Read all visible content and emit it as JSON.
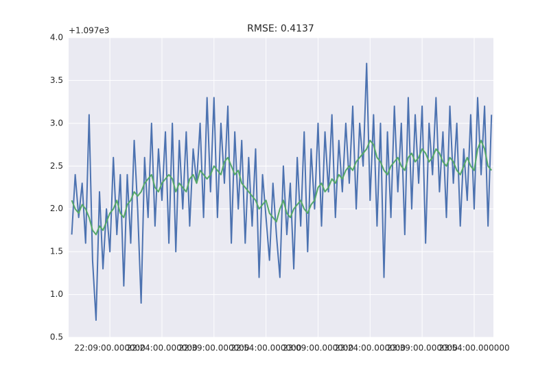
{
  "chart_data": {
    "type": "line",
    "title": "RMSE: 0.4137",
    "offset_label": "+1.097e3",
    "x": [
      "21:58:00",
      "21:59:00",
      "22:00:00",
      "22:01:00",
      "22:02:00",
      "22:03:00",
      "22:04:00",
      "22:05:00",
      "22:06:00",
      "22:07:00",
      "22:08:00",
      "22:09:00",
      "22:10:00",
      "22:11:00",
      "22:12:00",
      "22:13:00",
      "22:14:00",
      "22:15:00",
      "22:16:00",
      "22:17:00",
      "22:18:00",
      "22:19:00",
      "22:20:00",
      "22:21:00",
      "22:22:00",
      "22:23:00",
      "22:24:00",
      "22:25:00",
      "22:26:00",
      "22:27:00",
      "22:28:00",
      "22:29:00",
      "22:30:00",
      "22:31:00",
      "22:32:00",
      "22:33:00",
      "22:34:00",
      "22:35:00",
      "22:36:00",
      "22:37:00",
      "22:38:00",
      "22:39:00",
      "22:40:00",
      "22:41:00",
      "22:42:00",
      "22:43:00",
      "22:44:00",
      "22:45:00",
      "22:46:00",
      "22:47:00",
      "22:48:00",
      "22:49:00",
      "22:50:00",
      "22:51:00",
      "22:52:00",
      "22:53:00",
      "22:54:00",
      "22:55:00",
      "22:56:00",
      "22:57:00",
      "22:58:00",
      "22:59:00",
      "23:00:00",
      "23:01:00",
      "23:02:00",
      "23:03:00",
      "23:04:00",
      "23:05:00",
      "23:06:00",
      "23:07:00",
      "23:08:00",
      "23:09:00",
      "23:10:00",
      "23:11:00",
      "23:12:00",
      "23:13:00",
      "23:14:00",
      "23:15:00",
      "23:16:00",
      "23:17:00",
      "23:18:00",
      "23:19:00",
      "23:20:00",
      "23:21:00",
      "23:22:00",
      "23:23:00",
      "23:24:00",
      "23:25:00",
      "23:26:00",
      "23:27:00",
      "23:28:00",
      "23:29:00",
      "23:30:00",
      "23:31:00",
      "23:32:00",
      "23:33:00",
      "23:34:00",
      "23:35:00",
      "23:36:00",
      "23:37:00",
      "23:38:00",
      "23:39:00",
      "23:40:00",
      "23:41:00",
      "23:42:00",
      "23:43:00",
      "23:44:00",
      "23:45:00",
      "23:46:00",
      "23:47:00",
      "23:48:00",
      "23:49:00",
      "23:50:00",
      "23:51:00",
      "23:52:00",
      "23:53:00",
      "23:54:00",
      "23:55:00",
      "23:56:00",
      "23:57:00",
      "23:58:00",
      "23:59:00"
    ],
    "series": [
      {
        "color": "#4c72b0",
        "values": [
          1.7,
          2.4,
          1.9,
          2.3,
          1.6,
          3.1,
          1.4,
          0.7,
          2.2,
          1.3,
          2.0,
          1.5,
          2.6,
          1.7,
          2.4,
          1.1,
          2.4,
          1.6,
          2.8,
          2.0,
          0.9,
          2.6,
          1.9,
          3.0,
          1.8,
          2.7,
          2.1,
          2.9,
          1.6,
          3.0,
          1.5,
          2.8,
          2.0,
          2.9,
          1.8,
          2.7,
          2.3,
          3.0,
          1.9,
          3.3,
          2.2,
          3.3,
          1.9,
          3.0,
          2.3,
          3.2,
          1.6,
          2.9,
          2.0,
          2.8,
          1.6,
          2.6,
          1.8,
          2.7,
          1.2,
          2.4,
          1.9,
          1.4,
          2.3,
          1.7,
          1.2,
          2.5,
          1.7,
          2.3,
          1.3,
          2.6,
          1.8,
          2.9,
          1.5,
          2.7,
          2.0,
          3.0,
          1.8,
          2.9,
          2.2,
          3.1,
          1.9,
          2.8,
          2.2,
          3.0,
          2.3,
          3.2,
          2.0,
          3.0,
          2.5,
          3.7,
          2.1,
          3.1,
          1.8,
          3.0,
          1.2,
          2.9,
          1.9,
          3.2,
          2.2,
          3.0,
          1.7,
          3.3,
          2.0,
          3.1,
          2.3,
          3.2,
          1.6,
          3.0,
          2.4,
          3.3,
          2.2,
          2.9,
          1.9,
          3.2,
          2.3,
          3.0,
          1.8,
          2.7,
          2.1,
          3.1,
          2.0,
          3.3,
          2.4,
          3.2,
          1.8,
          3.1
        ]
      },
      {
        "color": "#55a868",
        "values": [
          2.1,
          2.0,
          1.95,
          2.05,
          2.0,
          1.9,
          1.75,
          1.7,
          1.8,
          1.75,
          1.85,
          1.95,
          2.0,
          2.1,
          1.95,
          1.9,
          2.05,
          2.1,
          2.2,
          2.15,
          2.2,
          2.3,
          2.35,
          2.4,
          2.25,
          2.2,
          2.3,
          2.35,
          2.4,
          2.35,
          2.2,
          2.3,
          2.25,
          2.2,
          2.35,
          2.4,
          2.3,
          2.45,
          2.4,
          2.35,
          2.4,
          2.5,
          2.45,
          2.4,
          2.55,
          2.6,
          2.5,
          2.4,
          2.45,
          2.3,
          2.25,
          2.2,
          2.15,
          2.1,
          2.0,
          2.05,
          2.1,
          1.95,
          1.9,
          1.85,
          2.0,
          2.1,
          1.95,
          1.9,
          2.0,
          2.05,
          2.1,
          2.0,
          1.95,
          2.05,
          2.1,
          2.25,
          2.3,
          2.2,
          2.25,
          2.35,
          2.3,
          2.4,
          2.35,
          2.45,
          2.5,
          2.45,
          2.55,
          2.6,
          2.65,
          2.7,
          2.8,
          2.75,
          2.6,
          2.55,
          2.45,
          2.4,
          2.5,
          2.55,
          2.6,
          2.5,
          2.45,
          2.6,
          2.65,
          2.55,
          2.6,
          2.7,
          2.65,
          2.55,
          2.6,
          2.7,
          2.65,
          2.55,
          2.5,
          2.6,
          2.55,
          2.45,
          2.4,
          2.5,
          2.6,
          2.5,
          2.45,
          2.7,
          2.8,
          2.7,
          2.5,
          2.45
        ]
      }
    ],
    "xlim": [
      "21:57:06",
      "23:59:33"
    ],
    "xticks": [
      {
        "value": "22:09:00",
        "label": "22:09:00.000000"
      },
      {
        "value": "22:24:00",
        "label": "22:24:00.000000"
      },
      {
        "value": "22:39:00",
        "label": "22:39:00.000000"
      },
      {
        "value": "22:54:00",
        "label": "22:54:00.000000"
      },
      {
        "value": "23:09:00",
        "label": "23:09:00.000000"
      },
      {
        "value": "23:24:00",
        "label": "23:24:00.000000"
      },
      {
        "value": "23:39:00",
        "label": "23:39:00.000000"
      },
      {
        "value": "23:54:00",
        "label": "23:54:00.000000"
      }
    ],
    "ylim": [
      0.5,
      4.0
    ],
    "yticks": [
      0.5,
      {
        "value": 1,
        "label": "1.0"
      },
      1.5,
      {
        "value": 2,
        "label": "2.0"
      },
      2.5,
      {
        "value": 3,
        "label": "3.0"
      },
      3.5,
      {
        "value": 4,
        "label": "4.0"
      }
    ],
    "grid": true
  }
}
